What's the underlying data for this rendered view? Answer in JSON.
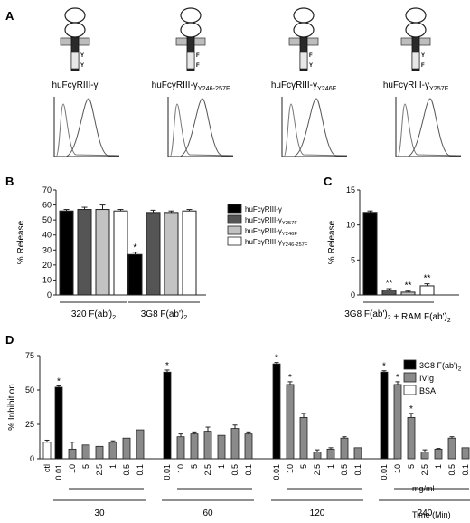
{
  "panel_labels": {
    "A": "A",
    "B": "B",
    "C": "C",
    "D": "D"
  },
  "panel_a": {
    "constructs": [
      {
        "name": "huFcγRIII-γ",
        "label_main": "huFcγRIII-γ",
        "label_sub": "",
        "motifs": [
          "Y",
          "Y"
        ]
      },
      {
        "name": "huFcγRIII-γY246-257F",
        "label_main": "huFcγRIII-γ",
        "label_sub": "Y246-257F",
        "motifs": [
          "F",
          "F"
        ]
      },
      {
        "name": "huFcγRIII-γY246F",
        "label_main": "huFcγRIII-γ",
        "label_sub": "Y246F",
        "motifs": [
          "F",
          "Y"
        ]
      },
      {
        "name": "huFcγRIII-γY257F",
        "label_main": "huFcγRIII-γ",
        "label_sub": "Y257F",
        "motifs": [
          "Y",
          "F"
        ]
      }
    ]
  },
  "chart_data": [
    {
      "id": "B",
      "type": "bar",
      "ylabel": "% Release",
      "ylim": [
        0,
        70
      ],
      "yticks": [
        0,
        10,
        20,
        30,
        40,
        50,
        60,
        70
      ],
      "groups": [
        "320 F(ab')2",
        "3G8 F(ab')2"
      ],
      "group_labels": [
        {
          "main": "320 F(ab')",
          "sub": "2"
        },
        {
          "main": "3G8 F(ab')",
          "sub": "2"
        }
      ],
      "series": [
        {
          "name": "huFcγRIII-γ",
          "label_main": "huFcγRIII-γ",
          "label_sub": "",
          "color": "#000000",
          "values": [
            56,
            27
          ],
          "errors": [
            1,
            1.5
          ]
        },
        {
          "name": "huFcγRIII-γY257F",
          "label_main": "huFcγRIII-γ",
          "label_sub": "Y257F",
          "color": "#555555",
          "values": [
            57,
            55
          ],
          "errors": [
            1.5,
            1.5
          ]
        },
        {
          "name": "huFcγRIII-γY246F",
          "label_main": "huFcγRIII-γ",
          "label_sub": "Y246F",
          "color": "#c3c3c3",
          "values": [
            57,
            55
          ],
          "errors": [
            3,
            1
          ]
        },
        {
          "name": "huFcγRIII-γY246-257F",
          "label_main": "huFcγRIII-γ",
          "label_sub": "Y246-257F",
          "color": "#ffffff",
          "values": [
            56,
            56
          ],
          "errors": [
            1,
            1
          ]
        }
      ],
      "significance": [
        {
          "series": 0,
          "group": 1,
          "mark": "*"
        }
      ],
      "legend": "right"
    },
    {
      "id": "C",
      "type": "bar",
      "ylabel": "% Release",
      "ylim": [
        0,
        15
      ],
      "yticks": [
        0,
        5,
        10,
        15
      ],
      "xlabel": "3G8 F(ab')2 + RAM F(ab')2",
      "xlabel_parts": [
        {
          "main": "3G8 F(ab')",
          "sub": "2"
        },
        {
          "main": " + RAM F(ab')",
          "sub": "2"
        }
      ],
      "series_values": [
        {
          "color": "#000000",
          "value": 11.8,
          "error": 0.2,
          "mark": ""
        },
        {
          "color": "#555555",
          "value": 0.7,
          "error": 0.2,
          "mark": "**"
        },
        {
          "color": "#c3c3c3",
          "value": 0.4,
          "error": 0.15,
          "mark": "**"
        },
        {
          "color": "#ffffff",
          "value": 1.3,
          "error": 0.3,
          "mark": "**"
        }
      ]
    },
    {
      "id": "D",
      "type": "bar",
      "ylabel": "% Inhibition",
      "ylim": [
        0,
        75
      ],
      "yticks": [
        0,
        25,
        50,
        75
      ],
      "unit_label": "mg/ml",
      "time_label": "Time (Min)",
      "ctl_label": "ctl",
      "ctl": {
        "value": 12,
        "error": 1.5,
        "color": "#ffffff"
      },
      "groups": [
        {
          "time": "30",
          "f3g8": {
            "value": 52,
            "error": 1
          },
          "ivig": [
            {
              "dose": "10",
              "value": 7,
              "error": 5,
              "mark": ""
            },
            {
              "dose": "5",
              "value": 10,
              "error": 0,
              "mark": ""
            },
            {
              "dose": "2.5",
              "value": 9,
              "error": 0,
              "mark": ""
            },
            {
              "dose": "1",
              "value": 12,
              "error": 1,
              "mark": ""
            },
            {
              "dose": "0.5",
              "value": 15,
              "error": 0,
              "mark": ""
            },
            {
              "dose": "0.1",
              "value": 21,
              "error": 0,
              "mark": ""
            }
          ]
        },
        {
          "time": "60",
          "f3g8": {
            "value": 63,
            "error": 1.5
          },
          "ivig": [
            {
              "dose": "10",
              "value": 16,
              "error": 2,
              "mark": ""
            },
            {
              "dose": "5",
              "value": 18,
              "error": 1.5,
              "mark": ""
            },
            {
              "dose": "2.5",
              "value": 20,
              "error": 3,
              "mark": ""
            },
            {
              "dose": "1",
              "value": 17,
              "error": 0,
              "mark": ""
            },
            {
              "dose": "0.5",
              "value": 22,
              "error": 2.5,
              "mark": ""
            },
            {
              "dose": "0.1",
              "value": 18,
              "error": 1.5,
              "mark": ""
            }
          ]
        },
        {
          "time": "120",
          "f3g8": {
            "value": 69,
            "error": 1
          },
          "ivig": [
            {
              "dose": "10",
              "value": 54,
              "error": 2,
              "mark": "*"
            },
            {
              "dose": "5",
              "value": 30,
              "error": 3,
              "mark": ""
            },
            {
              "dose": "2.5",
              "value": 5,
              "error": 1.5,
              "mark": ""
            },
            {
              "dose": "1",
              "value": 7,
              "error": 1,
              "mark": ""
            },
            {
              "dose": "0.5",
              "value": 15,
              "error": 1,
              "mark": ""
            },
            {
              "dose": "0.1",
              "value": 8,
              "error": 0,
              "mark": ""
            }
          ]
        },
        {
          "time": "240",
          "f3g8": {
            "value": 63,
            "error": 1
          },
          "ivig": [
            {
              "dose": "10",
              "value": 54,
              "error": 2,
              "mark": "*"
            },
            {
              "dose": "5",
              "value": 30,
              "error": 3,
              "mark": "*"
            },
            {
              "dose": "2.5",
              "value": 5,
              "error": 1.5,
              "mark": ""
            },
            {
              "dose": "1",
              "value": 7,
              "error": 0.5,
              "mark": ""
            },
            {
              "dose": "0.5",
              "value": 15,
              "error": 1,
              "mark": ""
            },
            {
              "dose": "0.1",
              "value": 8,
              "error": 0,
              "mark": ""
            }
          ]
        }
      ],
      "f3g8_dose": "0.01",
      "f3g8_mark": "*",
      "legend": [
        {
          "name": "3G8 F(ab')2",
          "label_main": "3G8 F(ab')",
          "label_sub": "2",
          "color": "#000000"
        },
        {
          "name": "IVIg",
          "label_main": "IVIg",
          "label_sub": "",
          "color": "#8a8a8a"
        },
        {
          "name": "BSA",
          "label_main": "BSA",
          "label_sub": "",
          "color": "#ffffff"
        }
      ]
    }
  ]
}
